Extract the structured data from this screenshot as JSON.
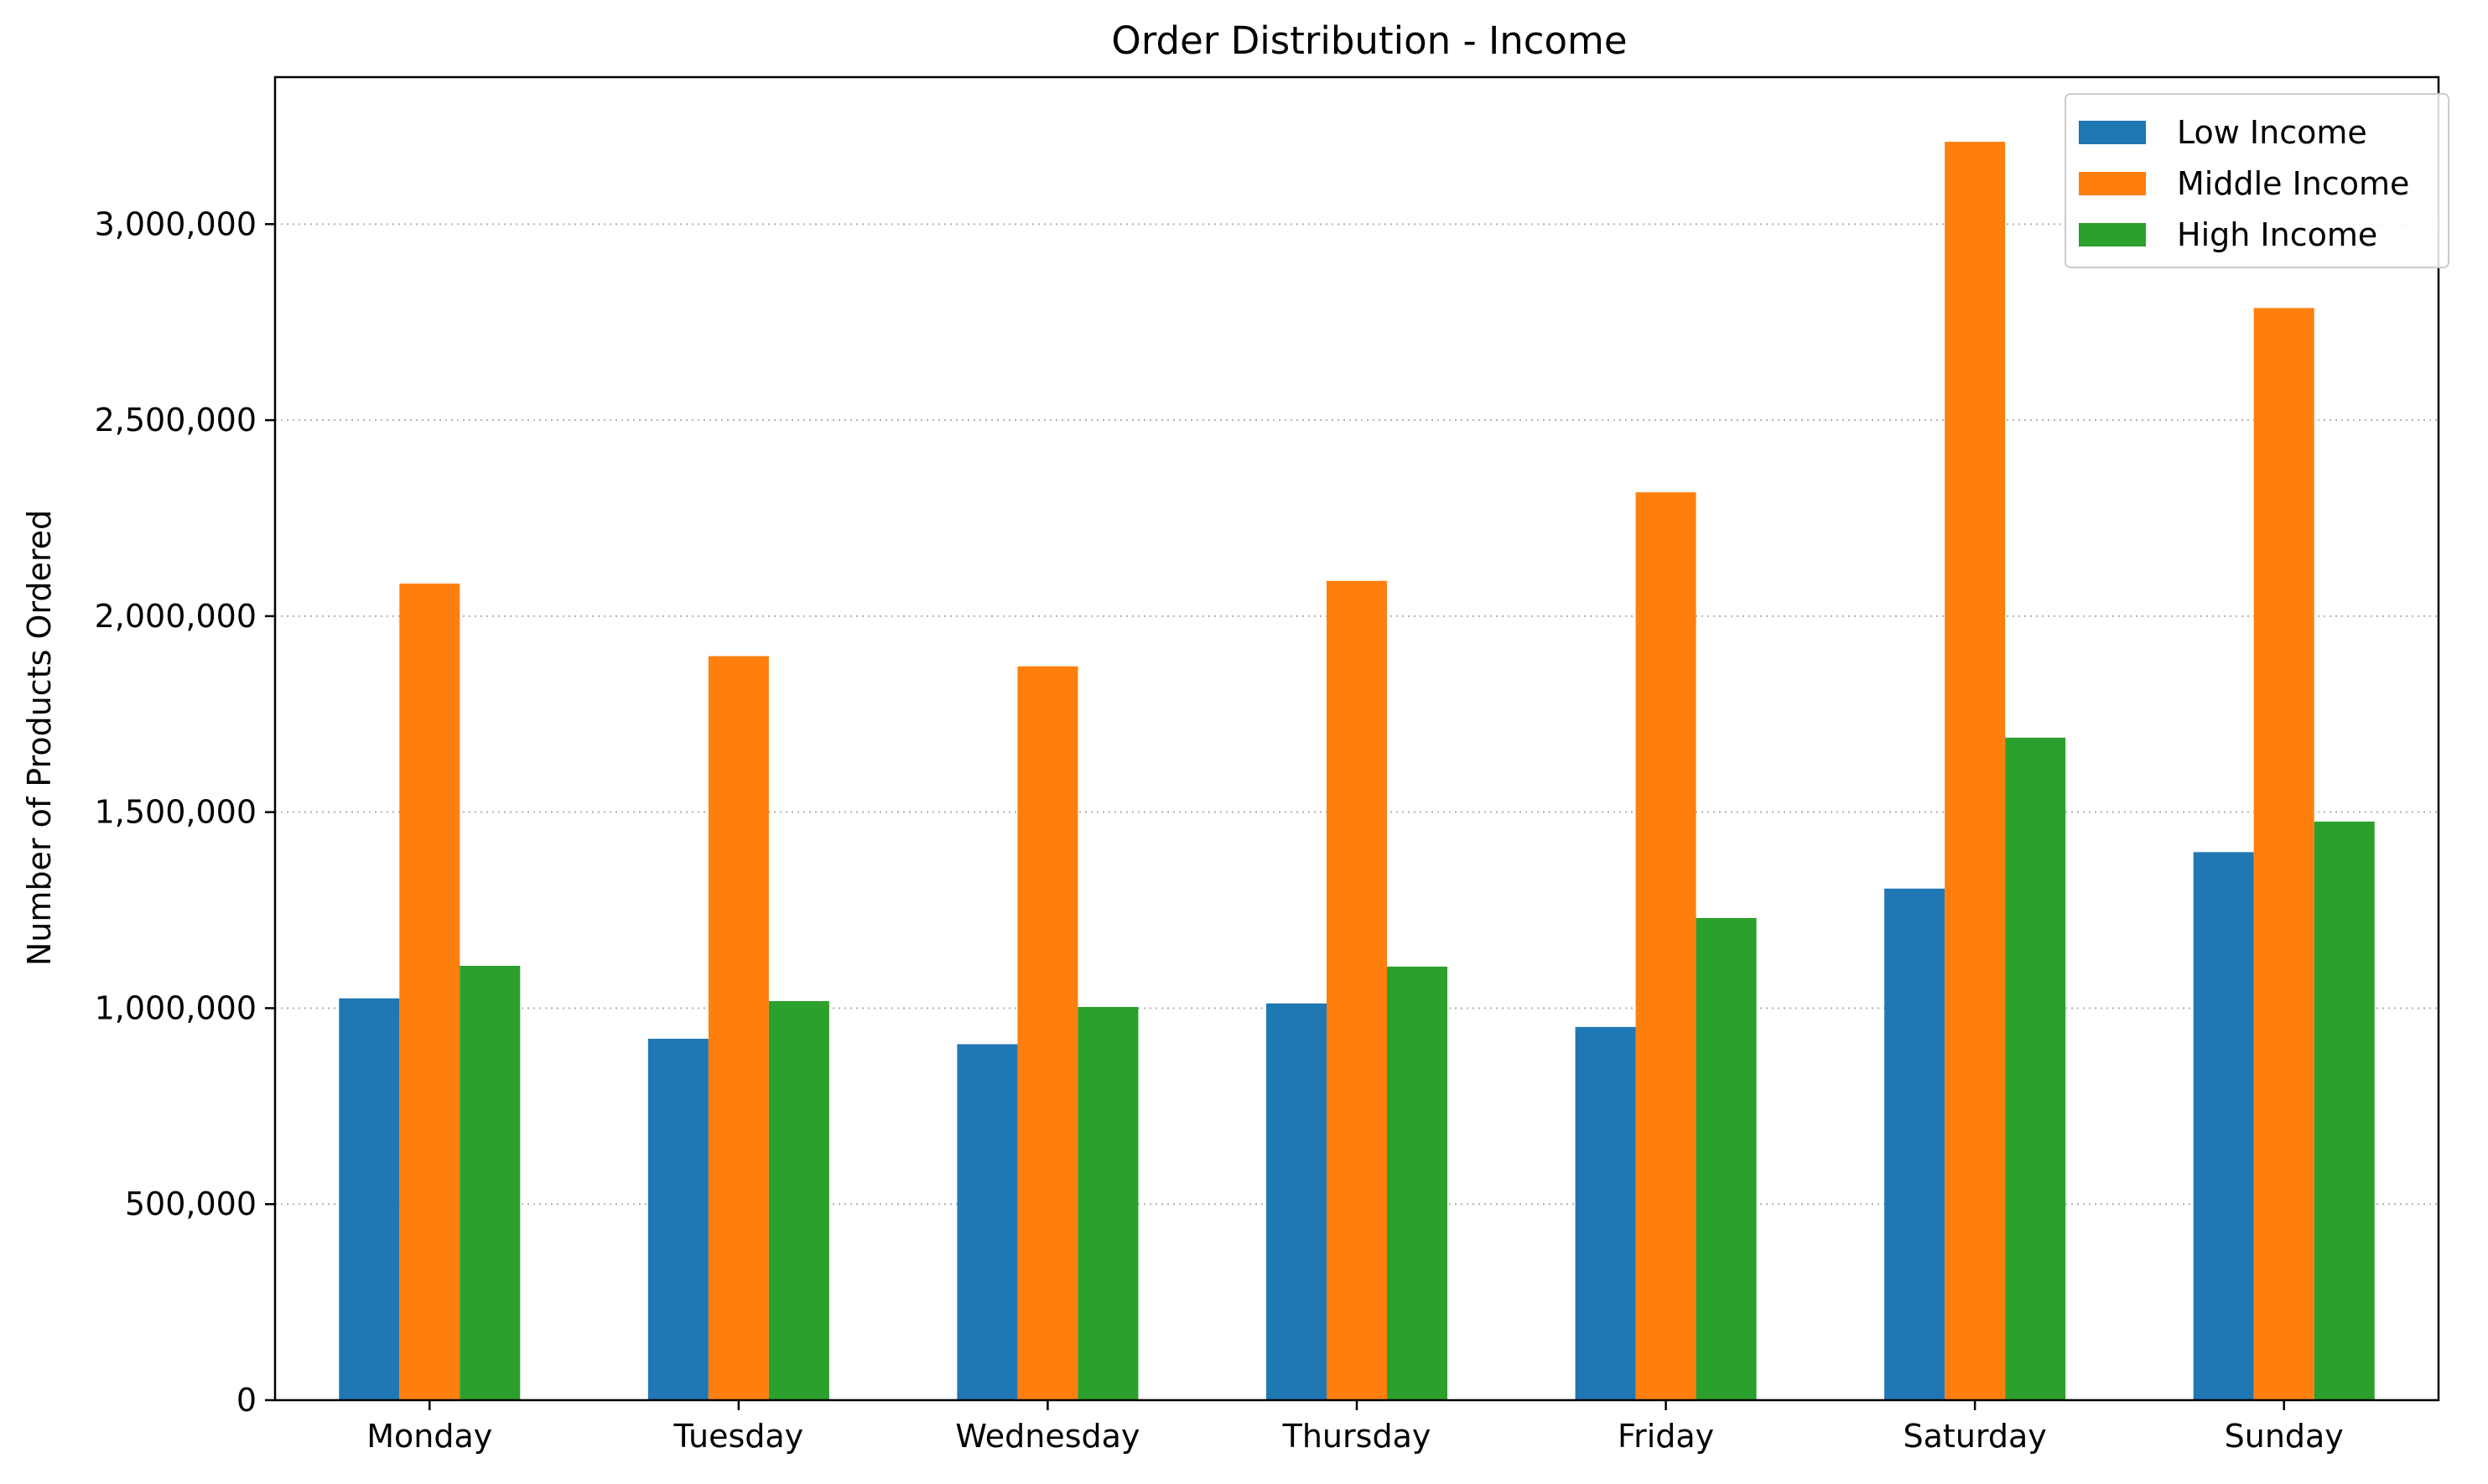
{
  "chart_data": {
    "type": "bar",
    "title": "Order Distribution - Income",
    "xlabel": "",
    "ylabel": "Number of Products Ordered",
    "categories": [
      "Monday",
      "Tuesday",
      "Wednesday",
      "Thursday",
      "Friday",
      "Saturday",
      "Sunday"
    ],
    "series": [
      {
        "name": "Low Income",
        "color": "#1f77b4",
        "values": [
          1025000,
          922000,
          908000,
          1012000,
          952000,
          1305000,
          1398000
        ]
      },
      {
        "name": "Middle Income",
        "color": "#ff7f0e",
        "values": [
          2083000,
          1898000,
          1872000,
          2090000,
          2316000,
          3210000,
          2786000
        ]
      },
      {
        "name": "High Income",
        "color": "#2ca02c",
        "values": [
          1108000,
          1018000,
          1003000,
          1106000,
          1230000,
          1690000,
          1476000
        ]
      }
    ],
    "ylim": [
      0,
      3375000
    ],
    "yticks": [
      0,
      500000,
      1000000,
      1500000,
      2000000,
      2500000,
      3000000
    ],
    "ytick_labels": [
      "0",
      "500,000",
      "1,000,000",
      "1,500,000",
      "2,000,000",
      "2,500,000",
      "3,000,000"
    ],
    "grid": {
      "axis": "y",
      "style": "dotted"
    },
    "legend": {
      "placement": "top-right"
    }
  }
}
